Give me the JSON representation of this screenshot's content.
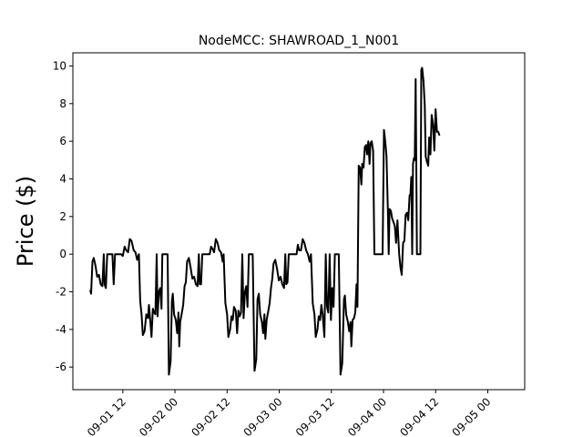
{
  "chart_data": {
    "type": "line",
    "title": "NodeMCC: SHAWROAD_1_N001",
    "xlabel": "",
    "ylabel": "Price ($)",
    "x_ticks": [
      {
        "t": 12,
        "label": "09-01 12"
      },
      {
        "t": 24,
        "label": "09-02 00"
      },
      {
        "t": 36,
        "label": "09-02 12"
      },
      {
        "t": 48,
        "label": "09-03 00"
      },
      {
        "t": 60,
        "label": "09-03 12"
      },
      {
        "t": 72,
        "label": "09-04 00"
      },
      {
        "t": 84,
        "label": "09-04 12"
      },
      {
        "t": 96,
        "label": "09-05 00"
      }
    ],
    "y_ticks": [
      -6,
      -4,
      -2,
      0,
      2,
      4,
      6,
      8,
      10
    ],
    "xlim": [
      0.5,
      104.5
    ],
    "ylim": [
      -7.2,
      10.7
    ],
    "grid": false,
    "series": [
      {
        "color": "#000000",
        "points": [
          [
            4.5,
            -1.9
          ],
          [
            4.7,
            -2.1
          ],
          [
            5,
            -0.4
          ],
          [
            5.3,
            -0.2
          ],
          [
            5.7,
            -0.6
          ],
          [
            6.1,
            -1.2
          ],
          [
            6.5,
            -1.1
          ],
          [
            6.9,
            -1.6
          ],
          [
            7.3,
            -1.7
          ],
          [
            7.6,
            0
          ],
          [
            7.8,
            -1.6
          ],
          [
            8.1,
            -1.8
          ],
          [
            8.4,
            0
          ],
          [
            8.8,
            0
          ],
          [
            9.3,
            0
          ],
          [
            9.6,
            0
          ],
          [
            9.9,
            -1.6
          ],
          [
            10.2,
            0
          ],
          [
            11,
            0
          ],
          [
            11.6,
            0
          ],
          [
            12,
            -0.1
          ],
          [
            12.4,
            0.4
          ],
          [
            12.8,
            0.2
          ],
          [
            13.2,
            0.1
          ],
          [
            13.6,
            0.8
          ],
          [
            14,
            0.7
          ],
          [
            14.5,
            0.2
          ],
          [
            14.9,
            0.1
          ],
          [
            15.3,
            -0.3
          ],
          [
            15.7,
            0
          ],
          [
            16,
            -2.5
          ],
          [
            16.3,
            -3.2
          ],
          [
            16.6,
            -4.3
          ],
          [
            17,
            -4.1
          ],
          [
            17.4,
            -3.2
          ],
          [
            17.8,
            -3.4
          ],
          [
            18,
            -2.7
          ],
          [
            18.3,
            -3.5
          ],
          [
            18.6,
            -4.4
          ],
          [
            18.9,
            -2.9
          ],
          [
            19.2,
            -3.1
          ],
          [
            19.5,
            -3.2
          ],
          [
            19.8,
            0
          ],
          [
            20,
            -3.3
          ],
          [
            20.3,
            -2
          ],
          [
            20.6,
            -1.8
          ],
          [
            20.9,
            -2.9
          ],
          [
            21.1,
            0
          ],
          [
            21.6,
            0
          ],
          [
            22,
            0
          ],
          [
            22.3,
            0
          ],
          [
            22.6,
            -6.4
          ],
          [
            23,
            -5.7
          ],
          [
            23.3,
            -2.5
          ],
          [
            23.5,
            -2.1
          ],
          [
            23.8,
            -3.2
          ],
          [
            24.2,
            -3.5
          ],
          [
            24.5,
            -4.2
          ],
          [
            24.8,
            -3.1
          ],
          [
            25,
            -4.9
          ],
          [
            25.2,
            -3.6
          ],
          [
            25.6,
            -3.1
          ],
          [
            25.9,
            -2.7
          ],
          [
            26.2,
            -1.7
          ],
          [
            26.5,
            -1.5
          ],
          [
            26.8,
            -0.4
          ],
          [
            27.2,
            -0.2
          ],
          [
            27.6,
            -0.7
          ],
          [
            28,
            -1.3
          ],
          [
            28.4,
            -1.2
          ],
          [
            28.8,
            -1.6
          ],
          [
            29.2,
            -1.7
          ],
          [
            29.5,
            0
          ],
          [
            29.7,
            -1.6
          ],
          [
            30,
            -1.6
          ],
          [
            30.3,
            0
          ],
          [
            30.9,
            0
          ],
          [
            31.6,
            0
          ],
          [
            32,
            0
          ],
          [
            32.3,
            0.4
          ],
          [
            32.6,
            0.3
          ],
          [
            33,
            0.1
          ],
          [
            33.4,
            0.8
          ],
          [
            33.8,
            0.6
          ],
          [
            34.2,
            0.2
          ],
          [
            34.6,
            0.1
          ],
          [
            35,
            -0.4
          ],
          [
            35.2,
            0
          ],
          [
            35.6,
            -2.6
          ],
          [
            36,
            -3.2
          ],
          [
            36.3,
            -4.4
          ],
          [
            36.7,
            -4
          ],
          [
            37,
            -3.3
          ],
          [
            37.3,
            -3.5
          ],
          [
            37.6,
            -2.8
          ],
          [
            38,
            -3
          ],
          [
            38.3,
            -4.2
          ],
          [
            38.6,
            -3
          ],
          [
            38.9,
            -3.3
          ],
          [
            39.2,
            -3.1
          ],
          [
            39.5,
            0
          ],
          [
            39.8,
            -3.4
          ],
          [
            40.1,
            -2
          ],
          [
            40.4,
            -1.7
          ],
          [
            40.7,
            -2.8
          ],
          [
            41,
            0
          ],
          [
            41.5,
            0
          ],
          [
            41.9,
            0
          ],
          [
            42.3,
            -6.2
          ],
          [
            42.7,
            -5.6
          ],
          [
            43,
            -2.4
          ],
          [
            43.3,
            -2.1
          ],
          [
            43.6,
            -3.2
          ],
          [
            44,
            -3.6
          ],
          [
            44.3,
            -4.2
          ],
          [
            44.6,
            -3.2
          ],
          [
            44.8,
            -4.5
          ],
          [
            45.1,
            -3.5
          ],
          [
            45.5,
            -3
          ],
          [
            45.8,
            -2.6
          ],
          [
            46.1,
            -1.8
          ],
          [
            46.4,
            -1.3
          ],
          [
            46.7,
            -0.5
          ],
          [
            47.1,
            -0.3
          ],
          [
            47.5,
            -0.8
          ],
          [
            47.9,
            -1.4
          ],
          [
            48.3,
            -1.2
          ],
          [
            48.7,
            -1.6
          ],
          [
            49.1,
            -1.8
          ],
          [
            49.4,
            0
          ],
          [
            49.6,
            -1.6
          ],
          [
            49.9,
            -1.5
          ],
          [
            50.2,
            0
          ],
          [
            50.8,
            0
          ],
          [
            51.6,
            0
          ],
          [
            52,
            0
          ],
          [
            52.3,
            0.5
          ],
          [
            52.6,
            0.2
          ],
          [
            53,
            0.2
          ],
          [
            53.4,
            0.8
          ],
          [
            53.8,
            0.6
          ],
          [
            54.2,
            0.2
          ],
          [
            54.6,
            0
          ],
          [
            55,
            -0.4
          ],
          [
            55.3,
            0
          ],
          [
            55.7,
            -2.6
          ],
          [
            56.1,
            -3.2
          ],
          [
            56.4,
            -4.4
          ],
          [
            56.8,
            -4
          ],
          [
            57.1,
            -3.3
          ],
          [
            57.4,
            -3.5
          ],
          [
            57.7,
            -2.7
          ],
          [
            58,
            -3.2
          ],
          [
            58.4,
            -4.4
          ],
          [
            58.7,
            0
          ],
          [
            59,
            -2.8
          ],
          [
            59.3,
            -3.1
          ],
          [
            59.6,
            0
          ],
          [
            59.9,
            -3.5
          ],
          [
            60.2,
            -1.8
          ],
          [
            60.5,
            -2.8
          ],
          [
            60.8,
            0
          ],
          [
            61.3,
            0
          ],
          [
            61.7,
            0
          ],
          [
            62.1,
            -6.4
          ],
          [
            62.5,
            -5.8
          ],
          [
            62.9,
            -2.4
          ],
          [
            63.1,
            -2.2
          ],
          [
            63.4,
            -3.2
          ],
          [
            63.8,
            -3.6
          ],
          [
            64.1,
            -4.1
          ],
          [
            64.4,
            -3.6
          ],
          [
            64.6,
            -4.9
          ],
          [
            64.9,
            -3.5
          ],
          [
            65.2,
            -3.4
          ],
          [
            65.5,
            -3.1
          ],
          [
            65.8,
            -1.6
          ],
          [
            66,
            -2.8
          ],
          [
            66.3,
            4.7
          ],
          [
            66.6,
            4.6
          ],
          [
            66.9,
            3.7
          ],
          [
            67.1,
            4.8
          ],
          [
            67.4,
            4.6
          ],
          [
            67.7,
            5.7
          ],
          [
            68,
            5.8
          ],
          [
            68.2,
            5.3
          ],
          [
            68.5,
            6
          ],
          [
            68.8,
            4.8
          ],
          [
            69,
            5.9
          ],
          [
            69.3,
            6
          ],
          [
            69.6,
            5.5
          ],
          [
            69.9,
            0
          ],
          [
            70.4,
            0
          ],
          [
            70.8,
            0
          ],
          [
            71.4,
            0
          ],
          [
            71.8,
            0
          ],
          [
            72.1,
            6.6
          ],
          [
            72.4,
            6
          ],
          [
            72.7,
            5.2
          ],
          [
            73,
            2.3
          ],
          [
            73.2,
            0
          ],
          [
            73.4,
            2.4
          ],
          [
            73.7,
            2.3
          ],
          [
            74,
            1.9
          ],
          [
            74.3,
            1.7
          ],
          [
            74.6,
            1.5
          ],
          [
            74.9,
            0.6
          ],
          [
            75.2,
            1.8
          ],
          [
            75.6,
            0
          ],
          [
            75.9,
            -0.7
          ],
          [
            76.2,
            -1.1
          ],
          [
            76.5,
            0.6
          ],
          [
            76.8,
            0.7
          ],
          [
            77.1,
            2.1
          ],
          [
            77.4,
            2.2
          ],
          [
            77.7,
            1.8
          ],
          [
            78,
            3.1
          ],
          [
            78.2,
            3.2
          ],
          [
            78.4,
            4.1
          ],
          [
            78.6,
            0
          ],
          [
            78.8,
            4.8
          ],
          [
            79,
            5.1
          ],
          [
            79.2,
            5
          ],
          [
            79.4,
            9.3
          ],
          [
            79.7,
            0
          ],
          [
            80,
            0
          ],
          [
            80.5,
            0
          ],
          [
            80.7,
            9.8
          ],
          [
            80.9,
            9.9
          ],
          [
            81.2,
            9.2
          ],
          [
            81.5,
            7.9
          ],
          [
            81.7,
            5.2
          ],
          [
            82,
            4.9
          ],
          [
            82.3,
            4.7
          ],
          [
            82.5,
            6.2
          ],
          [
            82.8,
            5.3
          ],
          [
            83.1,
            7.4
          ],
          [
            83.4,
            6.9
          ],
          [
            83.7,
            5.5
          ],
          [
            84,
            7.7
          ],
          [
            84.3,
            6.5
          ],
          [
            84.6,
            6.5
          ],
          [
            84.9,
            6.3
          ]
        ]
      }
    ]
  }
}
